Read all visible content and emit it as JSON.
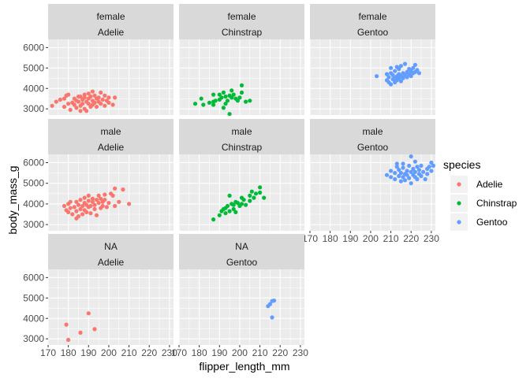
{
  "chart_data": {
    "type": "scatter",
    "xlabel": "flipper_length_mm",
    "ylabel": "body_mass_g",
    "xlim": [
      170,
      232
    ],
    "ylim": [
      2700,
      6400
    ],
    "x_ticks": [
      170,
      180,
      190,
      200,
      210,
      220,
      230
    ],
    "y_ticks": [
      3000,
      4000,
      5000,
      6000
    ],
    "x_tick_labels": [
      "170",
      "180",
      "190",
      "200",
      "210",
      "220",
      "230"
    ],
    "y_tick_labels": [
      "3000",
      "4000",
      "5000",
      "6000"
    ],
    "grid": true,
    "legend": {
      "title": "species",
      "position": "right",
      "entries": [
        {
          "label": "Adelie",
          "color": "#F8766D"
        },
        {
          "label": "Chinstrap",
          "color": "#00BA38"
        },
        {
          "label": "Gentoo",
          "color": "#619CFF"
        }
      ]
    },
    "panels": [
      {
        "sex": "female",
        "species": "Adelie",
        "color": "#F8766D",
        "points": [
          [
            172,
            3150
          ],
          [
            174,
            3350
          ],
          [
            176,
            3450
          ],
          [
            178,
            3500
          ],
          [
            178,
            3100
          ],
          [
            180,
            3250
          ],
          [
            180,
            3700
          ],
          [
            181,
            2950
          ],
          [
            182,
            3300
          ],
          [
            183,
            3200
          ],
          [
            184,
            3400
          ],
          [
            184,
            3050
          ],
          [
            185,
            3600
          ],
          [
            185,
            3350
          ],
          [
            186,
            3150
          ],
          [
            186,
            2900
          ],
          [
            187,
            3450
          ],
          [
            187,
            3250
          ],
          [
            188,
            3700
          ],
          [
            188,
            3550
          ],
          [
            188,
            3000
          ],
          [
            189,
            3350
          ],
          [
            190,
            3250
          ],
          [
            190,
            3500
          ],
          [
            190,
            3750
          ],
          [
            191,
            3100
          ],
          [
            191,
            3600
          ],
          [
            192,
            3400
          ],
          [
            192,
            3200
          ],
          [
            192,
            3850
          ],
          [
            193,
            3300
          ],
          [
            193,
            3650
          ],
          [
            194,
            3500
          ],
          [
            194,
            3100
          ],
          [
            195,
            3550
          ],
          [
            195,
            3350
          ],
          [
            196,
            3800
          ],
          [
            196,
            3250
          ],
          [
            197,
            3450
          ],
          [
            198,
            3650
          ],
          [
            198,
            3150
          ],
          [
            199,
            3400
          ],
          [
            200,
            3550
          ],
          [
            200,
            3300
          ],
          [
            202,
            3200
          ],
          [
            203,
            3550
          ],
          [
            189,
            2900
          ],
          [
            186,
            3600
          ],
          [
            183,
            3500
          ],
          [
            179,
            3650
          ]
        ]
      },
      {
        "sex": "female",
        "species": "Chinstrap",
        "color": "#00BA38",
        "points": [
          [
            178,
            3250
          ],
          [
            181,
            3500
          ],
          [
            182,
            3200
          ],
          [
            185,
            3300
          ],
          [
            187,
            3350
          ],
          [
            187,
            3700
          ],
          [
            188,
            3400
          ],
          [
            190,
            3450
          ],
          [
            190,
            3700
          ],
          [
            191,
            3550
          ],
          [
            192,
            3800
          ],
          [
            193,
            3600
          ],
          [
            193,
            3250
          ],
          [
            194,
            3400
          ],
          [
            195,
            3650
          ],
          [
            195,
            2750
          ],
          [
            196,
            3550
          ],
          [
            196,
            3900
          ],
          [
            197,
            3700
          ],
          [
            198,
            3500
          ],
          [
            199,
            3400
          ],
          [
            200,
            3550
          ],
          [
            201,
            3800
          ],
          [
            201,
            4150
          ],
          [
            203,
            3350
          ],
          [
            205,
            3400
          ],
          [
            187,
            3200
          ],
          [
            192,
            3050
          ]
        ]
      },
      {
        "sex": "female",
        "species": "Gentoo",
        "color": "#619CFF",
        "points": [
          [
            203,
            4600
          ],
          [
            208,
            4400
          ],
          [
            208,
            4700
          ],
          [
            209,
            4300
          ],
          [
            209,
            4550
          ],
          [
            210,
            4200
          ],
          [
            210,
            4750
          ],
          [
            210,
            5000
          ],
          [
            211,
            4450
          ],
          [
            211,
            4650
          ],
          [
            212,
            4500
          ],
          [
            212,
            4850
          ],
          [
            212,
            4300
          ],
          [
            213,
            4600
          ],
          [
            213,
            5050
          ],
          [
            213,
            4400
          ],
          [
            214,
            4700
          ],
          [
            214,
            4500
          ],
          [
            214,
            4950
          ],
          [
            215,
            4600
          ],
          [
            215,
            4350
          ],
          [
            215,
            5100
          ],
          [
            216,
            4750
          ],
          [
            216,
            4500
          ],
          [
            217,
            4650
          ],
          [
            217,
            5200
          ],
          [
            218,
            4800
          ],
          [
            218,
            4550
          ],
          [
            219,
            4950
          ],
          [
            219,
            4700
          ],
          [
            220,
            4850
          ],
          [
            220,
            4600
          ],
          [
            221,
            5000
          ],
          [
            221,
            4750
          ],
          [
            222,
            4800
          ],
          [
            222,
            5150
          ],
          [
            223,
            4900
          ],
          [
            224,
            4750
          ]
        ]
      },
      {
        "sex": "male",
        "species": "Adelie",
        "color": "#F8766D",
        "points": [
          [
            178,
            3900
          ],
          [
            179,
            3700
          ],
          [
            180,
            3600
          ],
          [
            180,
            4000
          ],
          [
            181,
            3800
          ],
          [
            182,
            3500
          ],
          [
            183,
            3850
          ],
          [
            184,
            4100
          ],
          [
            184,
            3650
          ],
          [
            185,
            3950
          ],
          [
            185,
            3400
          ],
          [
            186,
            4200
          ],
          [
            186,
            3750
          ],
          [
            187,
            3900
          ],
          [
            187,
            3500
          ],
          [
            188,
            4050
          ],
          [
            188,
            4300
          ],
          [
            188,
            3700
          ],
          [
            189,
            3950
          ],
          [
            189,
            3600
          ],
          [
            190,
            4150
          ],
          [
            190,
            3850
          ],
          [
            190,
            4400
          ],
          [
            191,
            3900
          ],
          [
            191,
            3550
          ],
          [
            192,
            4100
          ],
          [
            192,
            4250
          ],
          [
            193,
            3750
          ],
          [
            193,
            3950
          ],
          [
            194,
            4200
          ],
          [
            194,
            3450
          ],
          [
            195,
            4050
          ],
          [
            195,
            4400
          ],
          [
            196,
            3800
          ],
          [
            196,
            4250
          ],
          [
            197,
            4100
          ],
          [
            197,
            3900
          ],
          [
            198,
            4450
          ],
          [
            198,
            4200
          ],
          [
            199,
            3850
          ],
          [
            200,
            4050
          ],
          [
            201,
            4500
          ],
          [
            202,
            4400
          ],
          [
            203,
            3900
          ],
          [
            203,
            4750
          ],
          [
            205,
            4100
          ],
          [
            207,
            4700
          ],
          [
            210,
            4000
          ],
          [
            184,
            3300
          ],
          [
            181,
            4100
          ]
        ]
      },
      {
        "sex": "male",
        "species": "Chinstrap",
        "color": "#00BA38",
        "points": [
          [
            187,
            3250
          ],
          [
            190,
            3450
          ],
          [
            191,
            3650
          ],
          [
            192,
            3750
          ],
          [
            193,
            3800
          ],
          [
            193,
            3550
          ],
          [
            194,
            3900
          ],
          [
            195,
            3650
          ],
          [
            195,
            4400
          ],
          [
            196,
            4000
          ],
          [
            197,
            3750
          ],
          [
            197,
            3950
          ],
          [
            198,
            4100
          ],
          [
            198,
            3600
          ],
          [
            199,
            4050
          ],
          [
            200,
            3900
          ],
          [
            201,
            4300
          ],
          [
            201,
            4000
          ],
          [
            202,
            4200
          ],
          [
            203,
            3950
          ],
          [
            205,
            4400
          ],
          [
            205,
            4150
          ],
          [
            206,
            4600
          ],
          [
            207,
            4300
          ],
          [
            208,
            4500
          ],
          [
            210,
            4550
          ],
          [
            210,
            4800
          ],
          [
            212,
            4300
          ]
        ]
      },
      {
        "sex": "male",
        "species": "Gentoo",
        "color": "#619CFF",
        "points": [
          [
            208,
            5400
          ],
          [
            210,
            5600
          ],
          [
            210,
            5300
          ],
          [
            212,
            5500
          ],
          [
            212,
            5200
          ],
          [
            213,
            5800
          ],
          [
            214,
            5350
          ],
          [
            214,
            5650
          ],
          [
            215,
            5100
          ],
          [
            215,
            5500
          ],
          [
            216,
            5750
          ],
          [
            216,
            5300
          ],
          [
            216,
            5950
          ],
          [
            217,
            5450
          ],
          [
            217,
            5150
          ],
          [
            218,
            5600
          ],
          [
            218,
            5400
          ],
          [
            219,
            5850
          ],
          [
            219,
            5250
          ],
          [
            220,
            5550
          ],
          [
            220,
            5000
          ],
          [
            221,
            5700
          ],
          [
            221,
            5400
          ],
          [
            222,
            6050
          ],
          [
            222,
            5300
          ],
          [
            222,
            5550
          ],
          [
            223,
            5800
          ],
          [
            223,
            5200
          ],
          [
            224,
            5450
          ],
          [
            224,
            5650
          ],
          [
            225,
            5350
          ],
          [
            225,
            5850
          ],
          [
            226,
            5550
          ],
          [
            227,
            5200
          ],
          [
            228,
            5700
          ],
          [
            228,
            5450
          ],
          [
            229,
            5800
          ],
          [
            230,
            6000
          ],
          [
            230,
            5600
          ],
          [
            231,
            5850
          ],
          [
            220,
            6300
          ],
          [
            213,
            5950
          ]
        ]
      },
      {
        "sex": "NA",
        "species": "Adelie",
        "color": "#F8766D",
        "points": [
          [
            179,
            3700
          ],
          [
            180,
            2950
          ],
          [
            186,
            3300
          ],
          [
            190,
            4250
          ],
          [
            193,
            3475
          ]
        ]
      },
      {
        "sex": "NA",
        "species": "Gentoo",
        "color": "#619CFF",
        "points": [
          [
            214,
            4600
          ],
          [
            215,
            4700
          ],
          [
            216,
            4050
          ],
          [
            216,
            4850
          ],
          [
            217,
            4875
          ]
        ]
      }
    ]
  }
}
